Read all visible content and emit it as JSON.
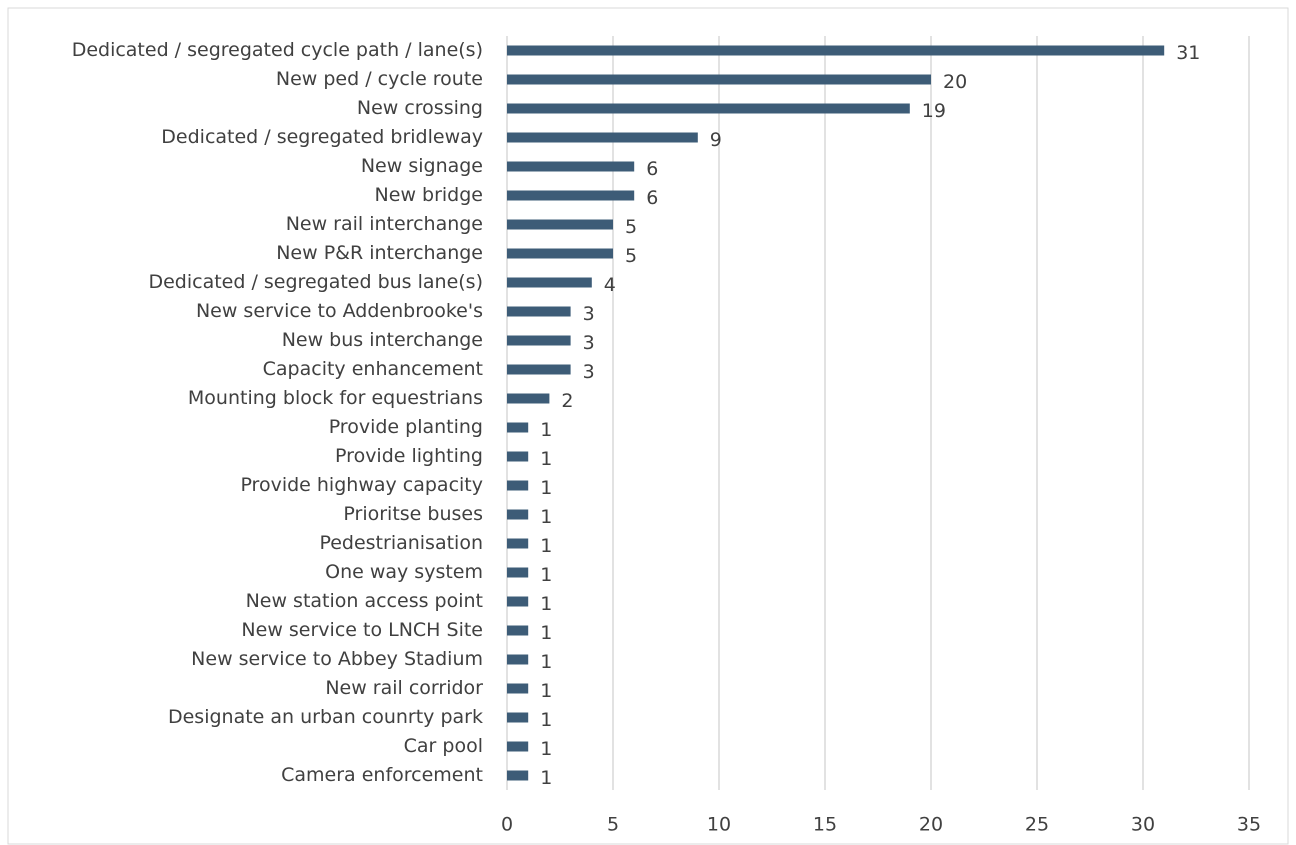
{
  "chart_data": {
    "type": "bar",
    "orientation": "horizontal",
    "categories": [
      "Dedicated / segregated cycle path / lane(s)",
      "New ped / cycle route",
      "New crossing",
      "Dedicated / segregated bridleway",
      "New signage",
      "New bridge",
      "New rail interchange",
      "New P&R interchange",
      "Dedicated / segregated bus lane(s)",
      "New service to Addenbrooke's",
      "New bus interchange",
      "Capacity enhancement",
      "Mounting block for equestrians",
      "Provide planting",
      "Provide lighting",
      "Provide highway capacity",
      "Prioritse buses",
      "Pedestrianisation",
      "One way system",
      "New station access point",
      "New service to LNCH Site",
      "New service to Abbey Stadium",
      "New rail corridor",
      "Designate an urban counrty park",
      "Car pool",
      "Camera enforcement"
    ],
    "values": [
      31,
      20,
      19,
      9,
      6,
      6,
      5,
      5,
      4,
      3,
      3,
      3,
      2,
      1,
      1,
      1,
      1,
      1,
      1,
      1,
      1,
      1,
      1,
      1,
      1,
      1
    ],
    "color": "#3d5c77",
    "xlim": [
      0,
      35
    ],
    "xticks": [
      0,
      5,
      10,
      15,
      20,
      25,
      30,
      35
    ],
    "grid": true
  }
}
